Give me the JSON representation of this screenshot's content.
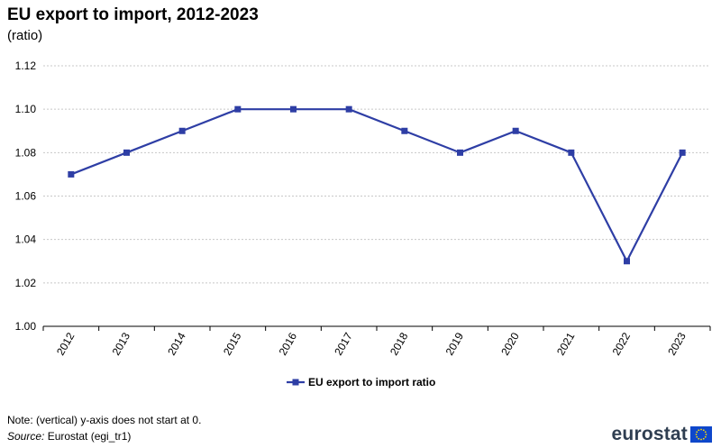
{
  "header": {
    "title": "EU export to import, 2012-2023",
    "subtitle": "(ratio)"
  },
  "footer": {
    "note": "Note: (vertical) y-axis does not start at 0.",
    "source_label": "Source:",
    "source_text": " Eurostat (egi_tr1)",
    "logo_text": "eurostat"
  },
  "colors": {
    "series": "#2e3ea5",
    "grid": "#c8c8c8",
    "axis": "#000000",
    "flag_blue": "#0e47cb",
    "flag_star": "#ffde00"
  },
  "chart_data": {
    "type": "line",
    "categories": [
      "2012",
      "2013",
      "2014",
      "2015",
      "2016",
      "2017",
      "2018",
      "2019",
      "2020",
      "2021",
      "2022",
      "2023"
    ],
    "series": [
      {
        "name": "EU export to import ratio",
        "values": [
          1.07,
          1.08,
          1.09,
          1.1,
          1.1,
          1.1,
          1.09,
          1.08,
          1.09,
          1.08,
          1.03,
          1.08
        ]
      }
    ],
    "y_ticks": [
      "1.00",
      "1.02",
      "1.04",
      "1.06",
      "1.08",
      "1.10",
      "1.12"
    ],
    "ylim": [
      1.0,
      1.12
    ],
    "grid": true,
    "legend_position": "bottom-center",
    "markers": "square"
  }
}
